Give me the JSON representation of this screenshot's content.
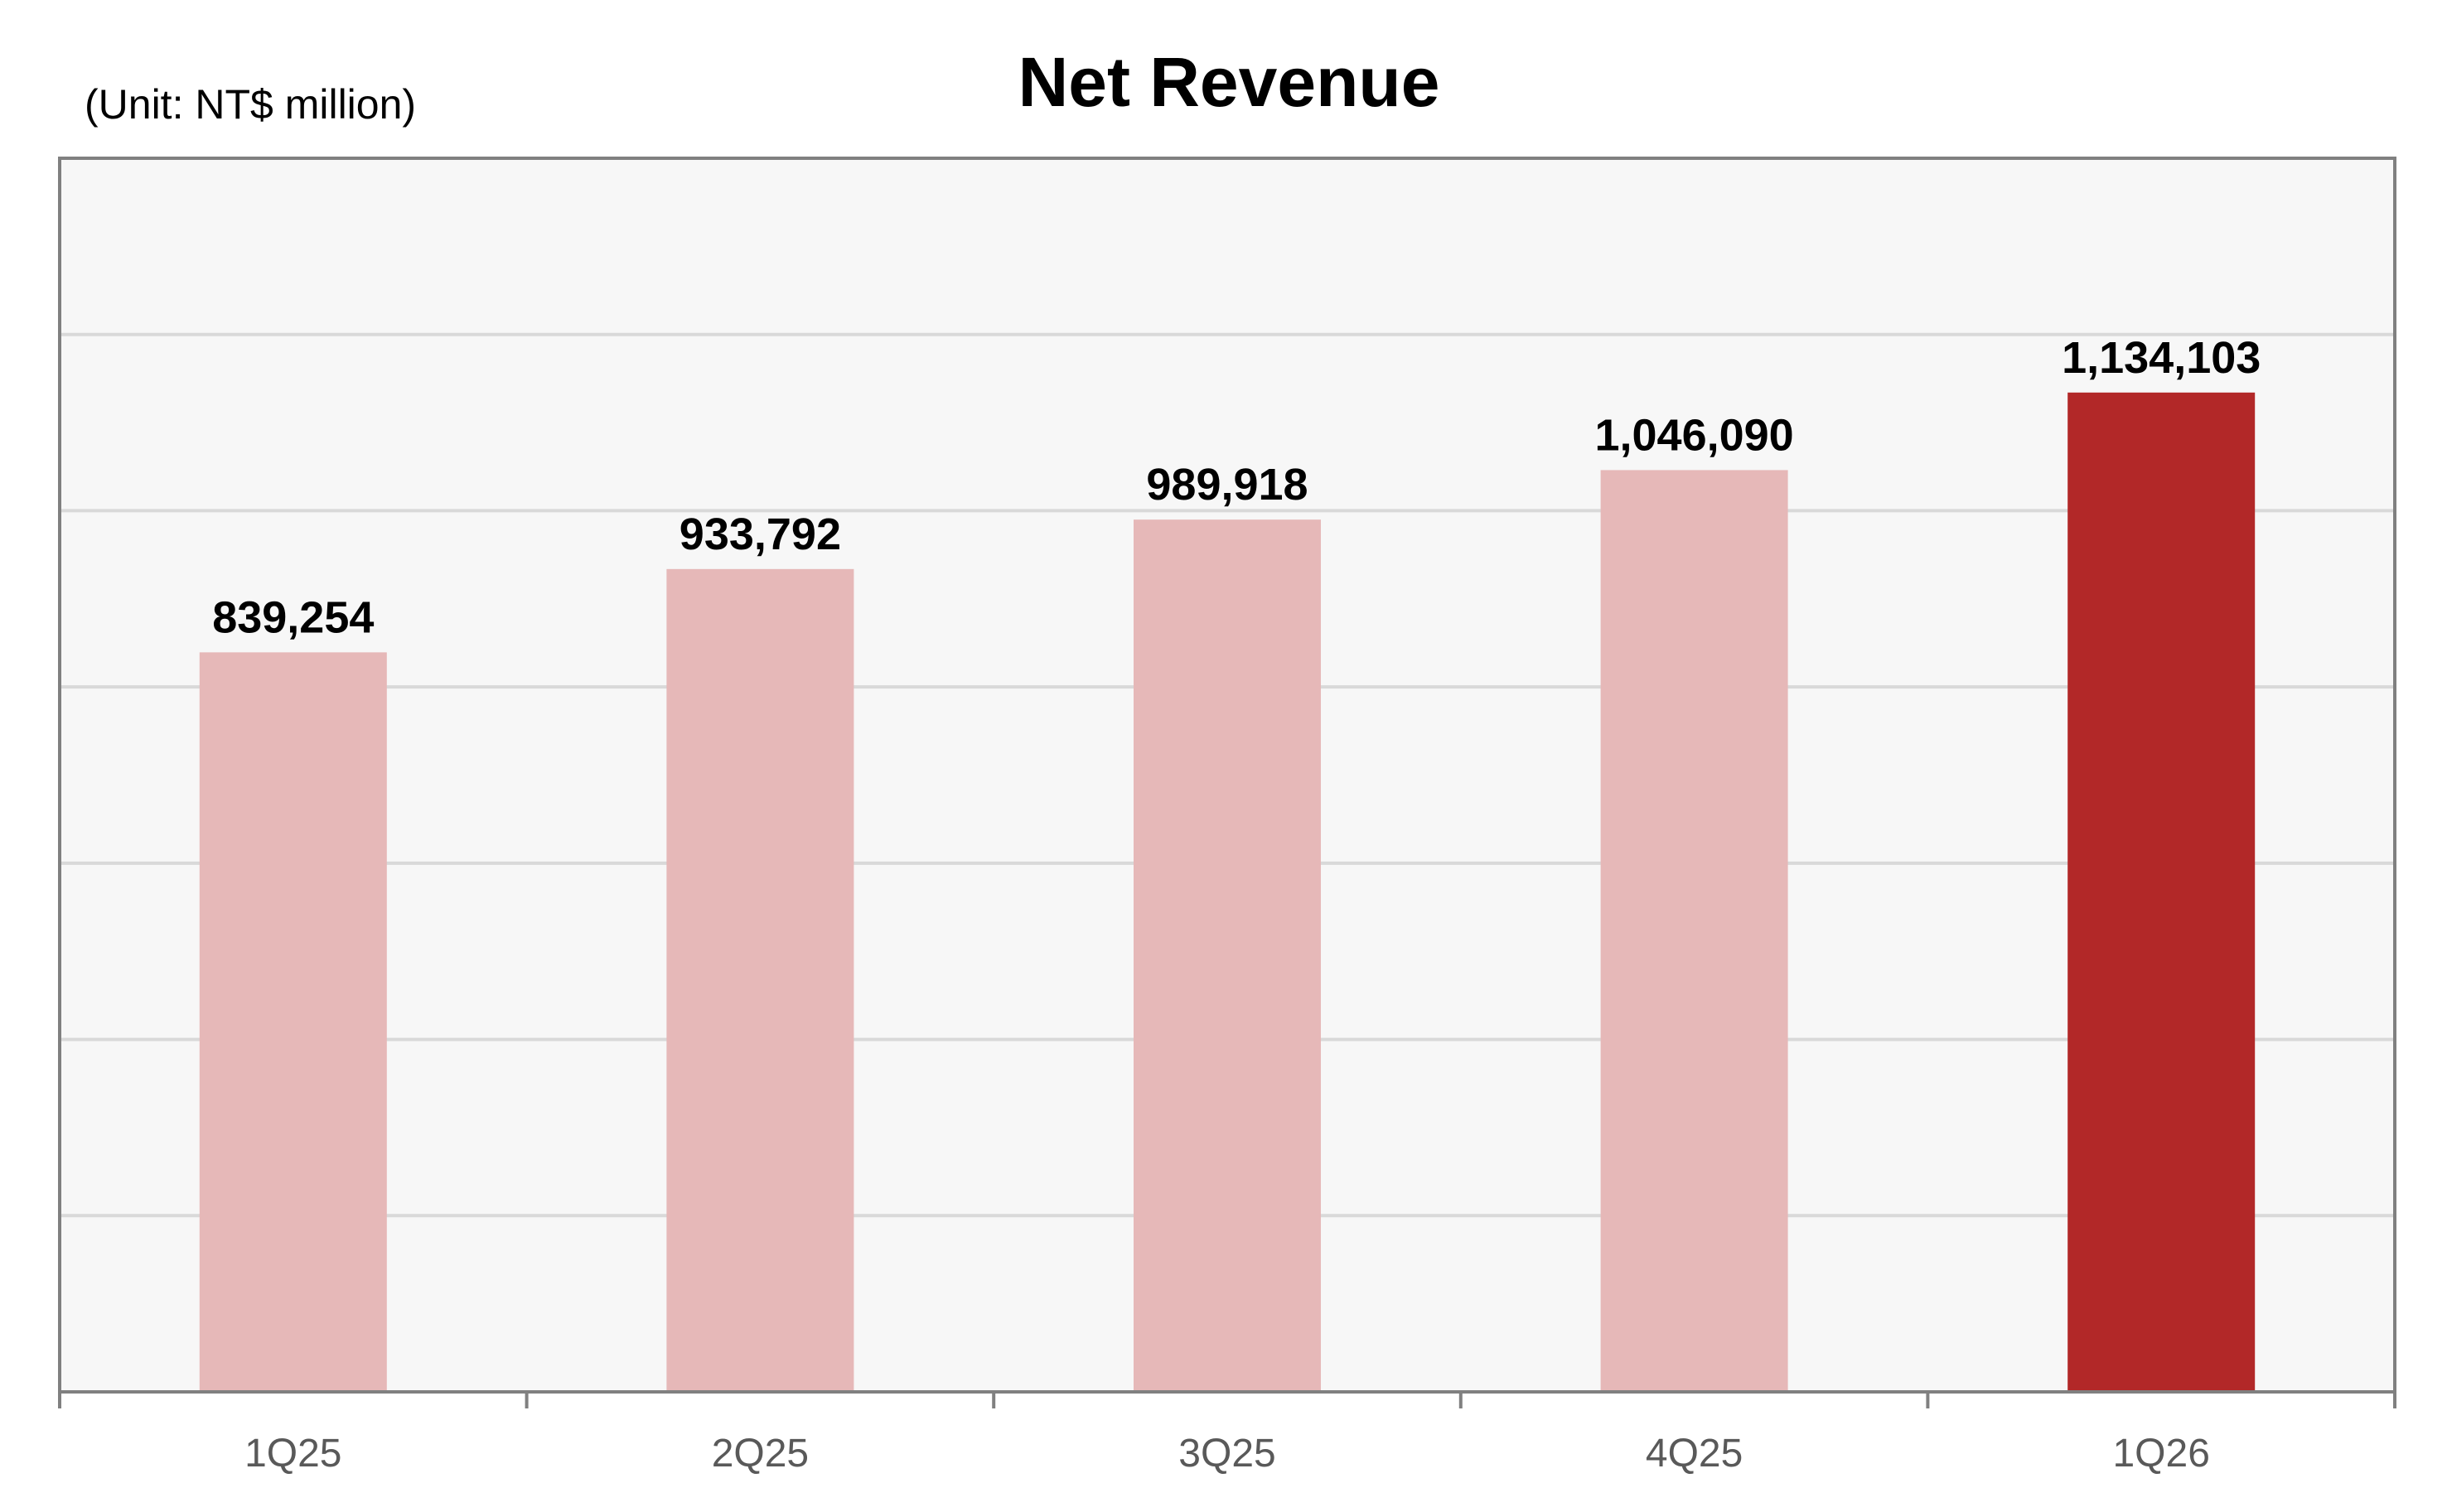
{
  "chart_data": {
    "type": "bar",
    "title": "Net Revenue",
    "unit_label": "(Unit: NT$ million)",
    "categories": [
      "1Q25",
      "2Q25",
      "3Q25",
      "4Q25",
      "1Q26"
    ],
    "values": [
      839254,
      933792,
      989918,
      1046090,
      1134103
    ],
    "value_labels": [
      "839,254",
      "933,792",
      "989,918",
      "1,046,090",
      "1,134,103"
    ],
    "xlabel": "",
    "ylabel": "",
    "ylim": [
      0,
      1400000
    ],
    "y_gridlines": [
      200000,
      400000,
      600000,
      800000,
      1000000,
      1200000
    ],
    "y_tick_labels_shown": false,
    "grid": true,
    "legend": "none",
    "colors": {
      "bar": "#e6b8b8",
      "highlight_bar": "#b22828",
      "plot_background": "#f7f7f7",
      "gridline": "#d9d9d9",
      "frame": "#808080"
    },
    "highlight_index": 4
  }
}
